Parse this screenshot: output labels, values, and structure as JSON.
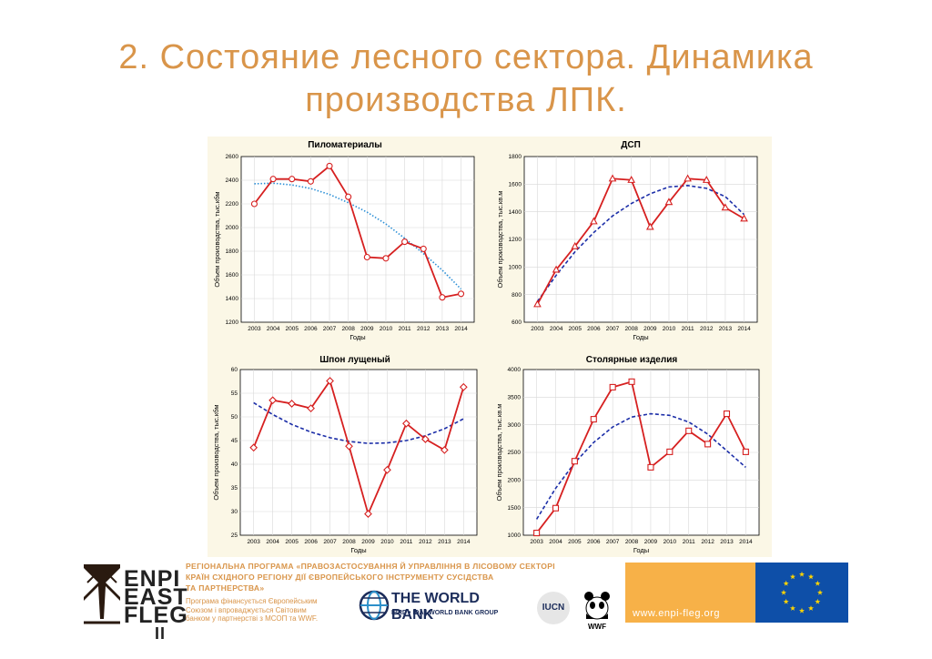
{
  "title": {
    "line1": "2. Состояние лесного сектора. Динамика",
    "line2": "производства ЛПК."
  },
  "colors": {
    "title": "#d9954a",
    "series_line": "#d62020",
    "trend_dark": "#1c2ea8",
    "trend_light": "#2b8fd6",
    "panel_bg": "#fbf7e6",
    "eu_blue": "#0e4fa8",
    "eu_star": "#ffd400",
    "orange_band": "#f7b148"
  },
  "chart_data": [
    {
      "type": "line",
      "title": "Пиломатериалы",
      "xlabel": "Годы",
      "ylabel": "Объем производства, тыс.кбм",
      "x": [
        2003,
        2004,
        2005,
        2006,
        2007,
        2008,
        2009,
        2010,
        2011,
        2012,
        2013,
        2014
      ],
      "y_ticks": [
        1200,
        1400,
        1600,
        1800,
        2000,
        2200,
        2400,
        2600
      ],
      "ylim": [
        1200,
        2600
      ],
      "marker": "circle",
      "series": [
        {
          "values": [
            2200,
            2410,
            2410,
            2390,
            2520,
            2260,
            1750,
            1740,
            1880,
            1820,
            1410,
            1440
          ]
        }
      ],
      "trend": {
        "style": "dotted",
        "values": [
          2370,
          2375,
          2360,
          2330,
          2280,
          2210,
          2130,
          2030,
          1910,
          1780,
          1640,
          1480
        ]
      },
      "grid": true
    },
    {
      "type": "line",
      "title": "ДСП",
      "xlabel": "Годы",
      "ylabel": "Объем производства, тыс.кв.м",
      "x": [
        2003,
        2004,
        2005,
        2006,
        2007,
        2008,
        2009,
        2010,
        2011,
        2012,
        2013,
        2014
      ],
      "y_ticks": [
        600,
        800,
        1000,
        1200,
        1400,
        1600,
        1800
      ],
      "ylim": [
        600,
        1800
      ],
      "marker": "triangle",
      "series": [
        {
          "values": [
            730,
            980,
            1150,
            1330,
            1640,
            1630,
            1290,
            1470,
            1640,
            1630,
            1430,
            1350
          ]
        }
      ],
      "trend": {
        "style": "dashed",
        "values": [
          750,
          940,
          1110,
          1250,
          1370,
          1460,
          1530,
          1580,
          1590,
          1570,
          1510,
          1380
        ]
      },
      "grid": true
    },
    {
      "type": "line",
      "title": "Шпон лущеный",
      "xlabel": "Годы",
      "ylabel": "Объем производства, тыс.кбм",
      "x": [
        2003,
        2004,
        2005,
        2006,
        2007,
        2008,
        2009,
        2010,
        2011,
        2012,
        2013,
        2014
      ],
      "y_ticks": [
        25,
        30,
        35,
        40,
        45,
        50,
        55,
        60
      ],
      "ylim": [
        25,
        60
      ],
      "marker": "diamond",
      "series": [
        {
          "values": [
            43.5,
            53.5,
            52.8,
            51.8,
            57.6,
            43.8,
            29.5,
            38.8,
            48.6,
            45.3,
            43.0,
            56.3
          ]
        }
      ],
      "trend": {
        "style": "dashed",
        "values": [
          53.0,
          50.5,
          48.4,
          46.8,
          45.6,
          44.8,
          44.4,
          44.5,
          45.0,
          46.0,
          47.5,
          49.6
        ]
      },
      "grid": true
    },
    {
      "type": "line",
      "title": "Столярные изделия",
      "xlabel": "Годы",
      "ylabel": "Объем производства, тыс.кв.м",
      "x": [
        2003,
        2004,
        2005,
        2006,
        2007,
        2008,
        2009,
        2010,
        2011,
        2012,
        2013,
        2014
      ],
      "y_ticks": [
        1000,
        1500,
        2000,
        2500,
        3000,
        3500,
        4000
      ],
      "ylim": [
        1000,
        4000
      ],
      "marker": "square",
      "series": [
        {
          "values": [
            1040,
            1490,
            2340,
            3100,
            3680,
            3780,
            2230,
            2510,
            2890,
            2650,
            3200,
            2510
          ]
        }
      ],
      "trend": {
        "style": "dashed",
        "values": [
          1290,
          1850,
          2310,
          2680,
          2960,
          3140,
          3200,
          3170,
          3050,
          2830,
          2530,
          2230
        ]
      },
      "grid": true
    }
  ],
  "footer": {
    "logo_lines": [
      "ENPI",
      "EAST",
      "FLEG",
      "II"
    ],
    "program_lines": [
      "РЕГІОНАЛЬНА ПРОГРАМА «ПРАВОЗАСТОСУВАННЯ Й УПРАВЛІННЯ В ЛІСОВОМУ СЕКТОРІ",
      "КРАЇН СХІДНОГО РЕГІОНУ ДІЇ ЄВРОПЕЙСЬКОГО ІНСТРУМЕНТУ СУСІДСТВА",
      "ТА ПАРТНЕРСТВА»"
    ],
    "funding_lines": [
      "Програма фінансується Європейським",
      "Союзом і впроваджується Світовим",
      "банком у партнерстві з МСОП та WWF."
    ],
    "world_bank": "THE WORLD BANK",
    "world_bank_sub": "IBRD • IDA | WORLD BANK GROUP",
    "iucn": "IUCN",
    "wwf": "WWF",
    "website": "www.enpi-fleg.org"
  }
}
